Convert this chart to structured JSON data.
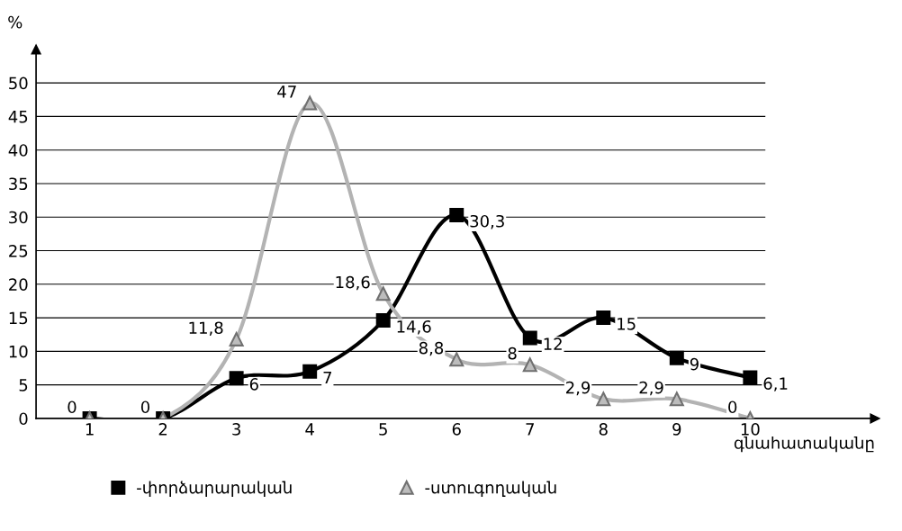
{
  "chart_data": {
    "type": "line",
    "ylabel": "%",
    "xlabel": "գնահատականը",
    "categories": [
      "1",
      "2",
      "3",
      "4",
      "5",
      "6",
      "7",
      "8",
      "9",
      "10"
    ],
    "series": [
      {
        "name": "-փորձարարական",
        "color": "#000000",
        "marker": "square",
        "values": [
          0,
          0,
          6,
          7,
          14.6,
          30.3,
          12,
          15,
          9,
          6.1
        ],
        "value_labels": [
          null,
          null,
          "6",
          "7",
          "14,6",
          "30,3",
          "12",
          "15",
          "9",
          "6,1"
        ]
      },
      {
        "name": "-ստուգողական",
        "color": "#b3b3b3",
        "marker": "triangle",
        "values": [
          0,
          0,
          11.8,
          47,
          18.6,
          8.8,
          8,
          2.9,
          2.9,
          0
        ],
        "value_labels": [
          "0",
          "0",
          "11,8",
          "47",
          "18,6",
          "8,8",
          "8",
          "2,9",
          "2,9",
          "0"
        ]
      }
    ],
    "ylim": [
      0,
      55
    ],
    "yticks": [
      0,
      5,
      10,
      15,
      20,
      25,
      30,
      35,
      40,
      45,
      50
    ],
    "grid": "y",
    "legend": "bottom"
  }
}
